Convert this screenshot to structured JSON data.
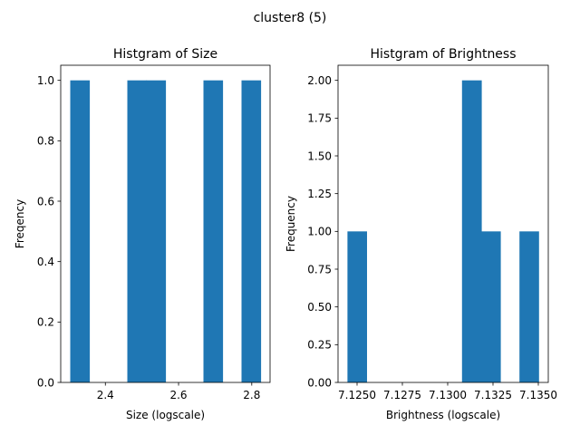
{
  "figure": {
    "suptitle": "cluster8 (5)",
    "bar_color": "#1f77b4"
  },
  "chart_data": [
    {
      "type": "bar",
      "title": "Histgram of Size",
      "xlabel": "Size (logscale)",
      "ylabel": "Freqency",
      "xlim": [
        2.278,
        2.85
      ],
      "ylim": [
        0,
        1.05
      ],
      "grid": false,
      "bins": [
        {
          "x0": 2.304,
          "x1": 2.356,
          "count": 1
        },
        {
          "x0": 2.356,
          "x1": 2.408,
          "count": 0
        },
        {
          "x0": 2.408,
          "x1": 2.46,
          "count": 0
        },
        {
          "x0": 2.46,
          "x1": 2.512,
          "count": 1
        },
        {
          "x0": 2.512,
          "x1": 2.564,
          "count": 1
        },
        {
          "x0": 2.564,
          "x1": 2.616,
          "count": 0
        },
        {
          "x0": 2.616,
          "x1": 2.668,
          "count": 0
        },
        {
          "x0": 2.668,
          "x1": 2.72,
          "count": 1
        },
        {
          "x0": 2.72,
          "x1": 2.772,
          "count": 0
        },
        {
          "x0": 2.772,
          "x1": 2.824,
          "count": 1
        }
      ],
      "xticks": [
        {
          "value": 2.4,
          "label": "2.4"
        },
        {
          "value": 2.6,
          "label": "2.6"
        },
        {
          "value": 2.8,
          "label": "2.8"
        }
      ],
      "yticks": [
        {
          "value": 0.0,
          "label": "0.0"
        },
        {
          "value": 0.2,
          "label": "0.2"
        },
        {
          "value": 0.4,
          "label": "0.4"
        },
        {
          "value": 0.6,
          "label": "0.6"
        },
        {
          "value": 0.8,
          "label": "0.8"
        },
        {
          "value": 1.0,
          "label": "1.0"
        }
      ]
    },
    {
      "type": "bar",
      "title": "Histgram of Brightness",
      "xlabel": "Brightness (logscale)",
      "ylabel": "Frequency",
      "xlim": [
        7.12395,
        7.13555
      ],
      "ylim": [
        0,
        2.1
      ],
      "grid": false,
      "bins": [
        {
          "x0": 7.12447,
          "x1": 7.12552,
          "count": 1
        },
        {
          "x0": 7.12552,
          "x1": 7.12658,
          "count": 0
        },
        {
          "x0": 7.12658,
          "x1": 7.12763,
          "count": 0
        },
        {
          "x0": 7.12763,
          "x1": 7.12869,
          "count": 0
        },
        {
          "x0": 7.12869,
          "x1": 7.12974,
          "count": 0
        },
        {
          "x0": 7.12974,
          "x1": 7.13079,
          "count": 0
        },
        {
          "x0": 7.13079,
          "x1": 7.13185,
          "count": 2
        },
        {
          "x0": 7.13185,
          "x1": 7.1329,
          "count": 1
        },
        {
          "x0": 7.1329,
          "x1": 7.13396,
          "count": 0
        },
        {
          "x0": 7.13396,
          "x1": 7.13501,
          "count": 1
        }
      ],
      "xticks": [
        {
          "value": 7.125,
          "label": "7.1250"
        },
        {
          "value": 7.1275,
          "label": "7.1275"
        },
        {
          "value": 7.13,
          "label": "7.1300"
        },
        {
          "value": 7.1325,
          "label": "7.1325"
        },
        {
          "value": 7.135,
          "label": "7.1350"
        }
      ],
      "yticks": [
        {
          "value": 0.0,
          "label": "0.00"
        },
        {
          "value": 0.25,
          "label": "0.25"
        },
        {
          "value": 0.5,
          "label": "0.50"
        },
        {
          "value": 0.75,
          "label": "0.75"
        },
        {
          "value": 1.0,
          "label": "1.00"
        },
        {
          "value": 1.25,
          "label": "1.25"
        },
        {
          "value": 1.5,
          "label": "1.50"
        },
        {
          "value": 1.75,
          "label": "1.75"
        },
        {
          "value": 2.0,
          "label": "2.00"
        }
      ]
    }
  ]
}
